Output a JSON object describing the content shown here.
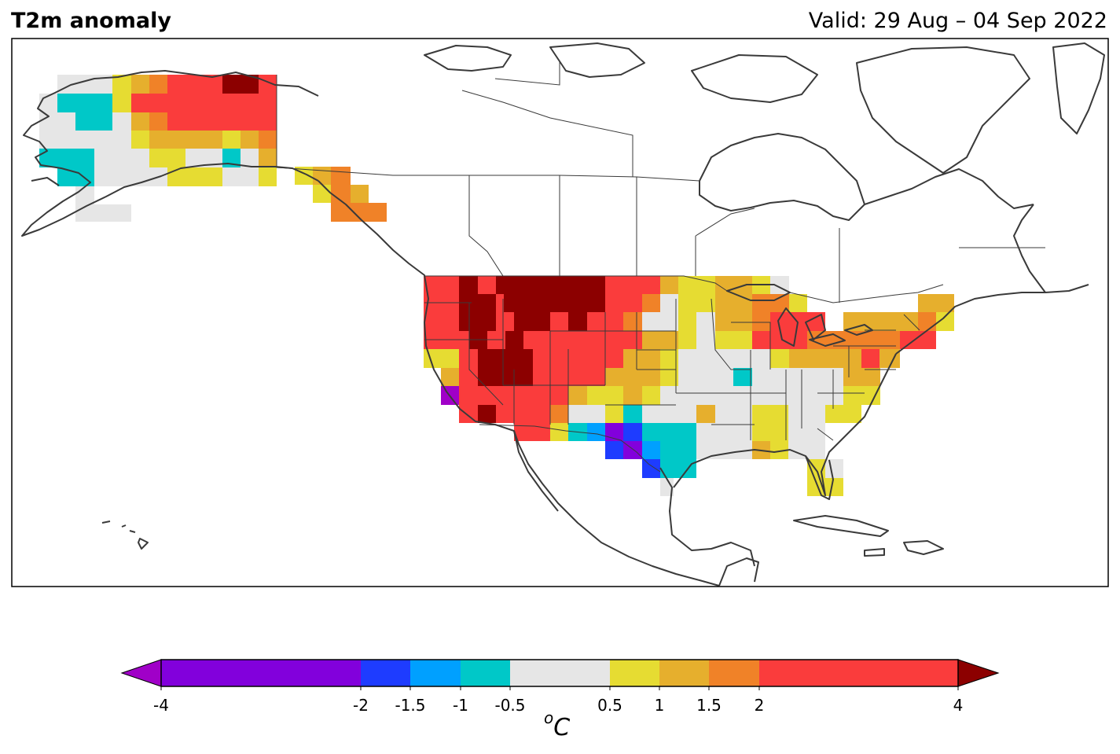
{
  "header": {
    "title": "T2m anomaly",
    "valid": "Valid: 29 Aug – 04 Sep 2022"
  },
  "colorbar": {
    "unit_sup": "o",
    "unit_main": "C",
    "boundaries": [
      -4,
      -2,
      -1.5,
      -1,
      -0.5,
      0.5,
      1,
      1.5,
      2,
      4
    ],
    "tick_labels": [
      "-4",
      "-2",
      "-1.5",
      "-1",
      "-0.5",
      "0.5",
      "1",
      "1.5",
      "2",
      "4"
    ],
    "colors": [
      "#8200DC",
      "#1E3CFF",
      "#00A0FF",
      "#00C8C8",
      "#E6E6E6",
      "#E6DC32",
      "#E6AF2D",
      "#F08228",
      "#FA3C3C"
    ],
    "under_color": "#A000C8",
    "over_color": "#8C0000"
  },
  "map": {
    "region": "North America",
    "field": "2m temperature anomaly"
  }
}
